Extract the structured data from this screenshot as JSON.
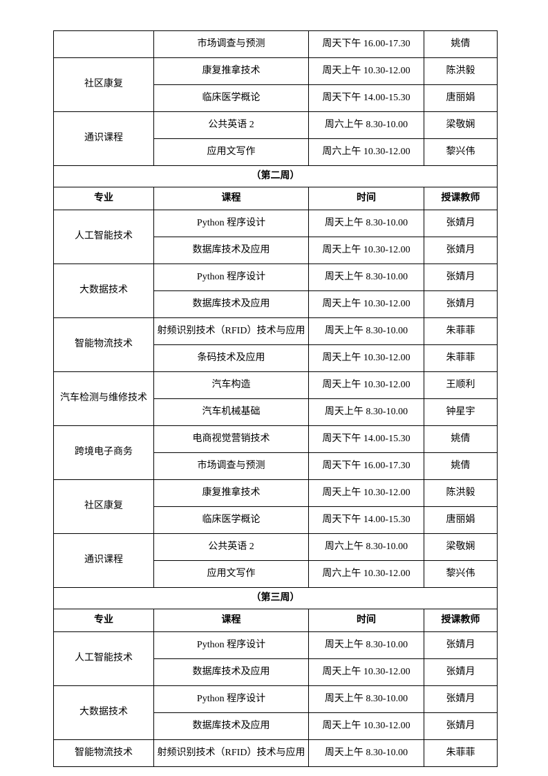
{
  "table": {
    "columns": [
      "专业",
      "课程",
      "时间",
      "授课教师"
    ],
    "sections": [
      {
        "groups": [
          {
            "major": "",
            "rows": [
              {
                "course": "市场调查与预测",
                "time": "周天下午 16.00-17.30",
                "teacher": "姚倩"
              }
            ]
          },
          {
            "major": "社区康复",
            "rows": [
              {
                "course": "康复推拿技术",
                "time": "周天上午 10.30-12.00",
                "teacher": "陈洪毅"
              },
              {
                "course": "临床医学概论",
                "time": "周天下午 14.00-15.30",
                "teacher": "唐丽娟"
              }
            ]
          },
          {
            "major": "通识课程",
            "rows": [
              {
                "course": "公共英语 2",
                "time": "周六上午 8.30-10.00",
                "teacher": "梁敬娴"
              },
              {
                "course": "应用文写作",
                "time": "周六上午 10.30-12.00",
                "teacher": "黎兴伟"
              }
            ]
          }
        ]
      },
      {
        "title": "（第二周）",
        "header": [
          "专业",
          "课程",
          "时间",
          "授课教师"
        ],
        "groups": [
          {
            "major": "人工智能技术",
            "rows": [
              {
                "course": "Python 程序设计",
                "time": "周天上午 8.30-10.00",
                "teacher": "张婧月"
              },
              {
                "course": "数据库技术及应用",
                "time": "周天上午 10.30-12.00",
                "teacher": "张婧月"
              }
            ]
          },
          {
            "major": "大数据技术",
            "rows": [
              {
                "course": "Python 程序设计",
                "time": "周天上午 8.30-10.00",
                "teacher": "张婧月"
              },
              {
                "course": "数据库技术及应用",
                "time": "周天上午 10.30-12.00",
                "teacher": "张婧月"
              }
            ]
          },
          {
            "major": "智能物流技术",
            "rows": [
              {
                "course": "射频识别技术（RFID）技术与应用",
                "time": "周天上午 8.30-10.00",
                "teacher": "朱菲菲"
              },
              {
                "course": "条码技术及应用",
                "time": "周天上午 10.30-12.00",
                "teacher": "朱菲菲"
              }
            ]
          },
          {
            "major": "汽车检测与维修技术",
            "rows": [
              {
                "course": "汽车构造",
                "time": "周天上午 10.30-12.00",
                "teacher": "王顺利"
              },
              {
                "course": "汽车机械基础",
                "time": "周天上午 8.30-10.00",
                "teacher": "钟星宇"
              }
            ]
          },
          {
            "major": "跨境电子商务",
            "rows": [
              {
                "course": "电商视觉营销技术",
                "time": "周天下午 14.00-15.30",
                "teacher": "姚倩"
              },
              {
                "course": "市场调查与预测",
                "time": "周天下午 16.00-17.30",
                "teacher": "姚倩"
              }
            ]
          },
          {
            "major": "社区康复",
            "rows": [
              {
                "course": "康复推拿技术",
                "time": "周天上午 10.30-12.00",
                "teacher": "陈洪毅"
              },
              {
                "course": "临床医学概论",
                "time": "周天下午 14.00-15.30",
                "teacher": "唐丽娟"
              }
            ]
          },
          {
            "major": "通识课程",
            "rows": [
              {
                "course": "公共英语 2",
                "time": "周六上午 8.30-10.00",
                "teacher": "梁敬娴"
              },
              {
                "course": "应用文写作",
                "time": "周六上午 10.30-12.00",
                "teacher": "黎兴伟"
              }
            ]
          }
        ]
      },
      {
        "title": "（第三周）",
        "header": [
          "专业",
          "课程",
          "时间",
          "授课教师"
        ],
        "groups": [
          {
            "major": "人工智能技术",
            "rows": [
              {
                "course": "Python 程序设计",
                "time": "周天上午 8.30-10.00",
                "teacher": "张婧月"
              },
              {
                "course": "数据库技术及应用",
                "time": "周天上午 10.30-12.00",
                "teacher": "张婧月"
              }
            ]
          },
          {
            "major": "大数据技术",
            "rows": [
              {
                "course": "Python 程序设计",
                "time": "周天上午 8.30-10.00",
                "teacher": "张婧月"
              },
              {
                "course": "数据库技术及应用",
                "time": "周天上午 10.30-12.00",
                "teacher": "张婧月"
              }
            ]
          },
          {
            "major": "智能物流技术",
            "rows": [
              {
                "course": "射频识别技术（RFID）技术与应用",
                "time": "周天上午 8.30-10.00",
                "teacher": "朱菲菲"
              }
            ]
          }
        ]
      }
    ]
  }
}
